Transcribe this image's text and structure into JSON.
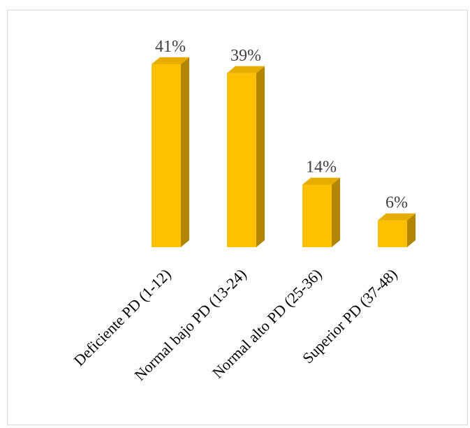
{
  "chart_data": {
    "type": "bar",
    "style": "3d-column",
    "categories": [
      "Deficiente PD (1-12)",
      "Normal bajo PD (13-24)",
      "Normal alto PD (25-36)",
      "Superior PD (37-48)"
    ],
    "values": [
      41,
      39,
      14,
      6
    ],
    "data_labels": [
      "41%",
      "39%",
      "14%",
      "6%"
    ],
    "unit": "%",
    "ylim": [
      0,
      41
    ],
    "grid": false,
    "legend": "none",
    "colors": {
      "front": "#FFC000",
      "side": "#B38600",
      "top": "#E6AC00"
    }
  }
}
